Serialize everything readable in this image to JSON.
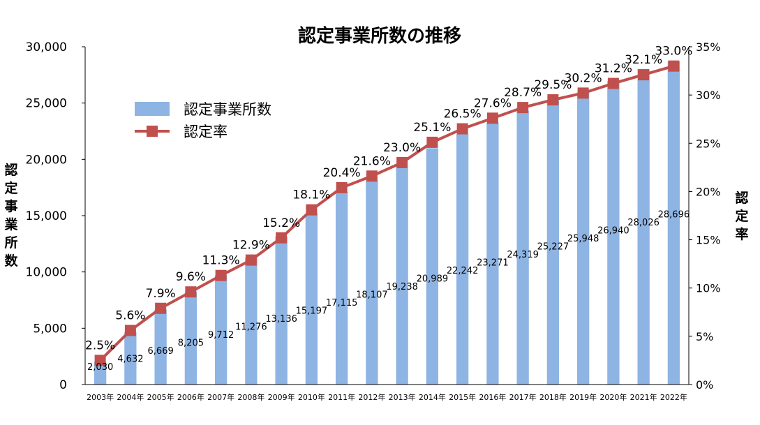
{
  "chart_data": {
    "type": "bar+line",
    "title": "認定事業所数の推移",
    "categories": [
      "2003年",
      "2004年",
      "2005年",
      "2006年",
      "2007年",
      "2008年",
      "2009年",
      "2010年",
      "2011年",
      "2012年",
      "2013年",
      "2014年",
      "2015年",
      "2016年",
      "2017年",
      "2018年",
      "2019年",
      "2020年",
      "2021年",
      "2022年"
    ],
    "series": [
      {
        "name": "認定事業所数",
        "type": "bar",
        "axis": "left",
        "color": "#8eb4e3",
        "values": [
          2030,
          4632,
          6669,
          8205,
          9712,
          11276,
          13136,
          15197,
          17115,
          18107,
          19238,
          20989,
          22242,
          23271,
          24319,
          25227,
          25948,
          26940,
          28026,
          28696
        ],
        "labels": [
          "2,030",
          "4,632",
          "6,669",
          "8,205",
          "9,712",
          "11,276",
          "13,136",
          "15,197",
          "17,115",
          "18,107",
          "19,238",
          "20,989",
          "22,242",
          "23,271",
          "24,319",
          "25,227",
          "25,948",
          "26,940",
          "28,026",
          "28,696"
        ]
      },
      {
        "name": "認定率",
        "type": "line",
        "axis": "right",
        "color": "#c0504d",
        "values": [
          2.5,
          5.6,
          7.9,
          9.6,
          11.3,
          12.9,
          15.2,
          18.1,
          20.4,
          21.6,
          23.0,
          25.1,
          26.5,
          27.6,
          28.7,
          29.5,
          30.2,
          31.2,
          32.1,
          33.0
        ],
        "labels": [
          "2.5%",
          "5.6%",
          "7.9%",
          "9.6%",
          "11.3%",
          "12.9%",
          "15.2%",
          "18.1%",
          "20.4%",
          "21.6%",
          "23.0%",
          "25.1%",
          "26.5%",
          "27.6%",
          "28.7%",
          "29.5%",
          "30.2%",
          "31.2%",
          "32.1%",
          "33.0%"
        ]
      }
    ],
    "y_axis": {
      "label": "認定事業所数",
      "range": [
        0,
        30000
      ],
      "ticks": [
        0,
        5000,
        10000,
        15000,
        20000,
        25000,
        30000
      ],
      "tick_labels": [
        "0",
        "5,000",
        "10,000",
        "15,000",
        "20,000",
        "25,000",
        "30,000"
      ]
    },
    "y2_axis": {
      "label": "認定率",
      "range": [
        0,
        35
      ],
      "ticks": [
        0,
        5,
        10,
        15,
        20,
        25,
        30,
        35
      ],
      "tick_labels": [
        "0%",
        "5%",
        "10%",
        "15%",
        "20%",
        "25%",
        "30%",
        "35%"
      ]
    },
    "legend": {
      "placement": "upper-left",
      "entries": [
        "認定事業所数",
        "認定率"
      ]
    },
    "grid": false
  }
}
